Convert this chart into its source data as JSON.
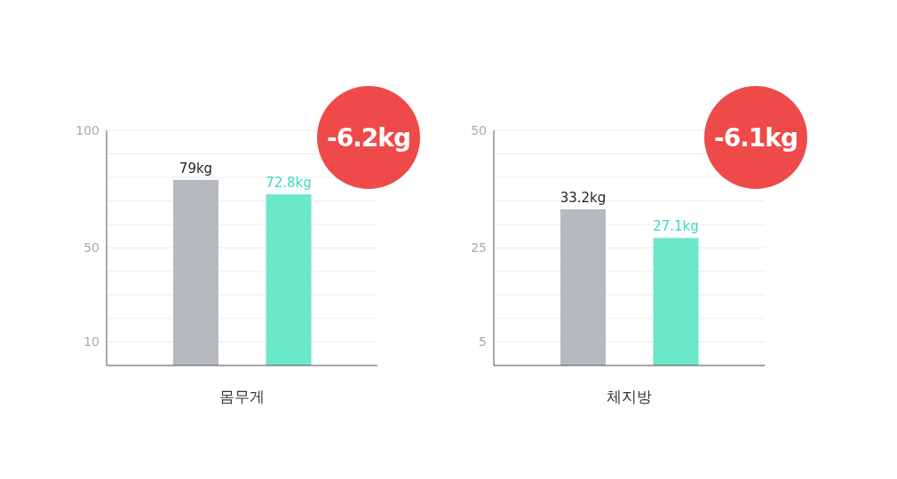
{
  "chart_data": [
    {
      "type": "bar",
      "xlabel": "몸무게",
      "categories": [
        null,
        null
      ],
      "values": [
        79,
        72.8
      ],
      "colors": [
        "#b6b9bd",
        "#6be7ca"
      ],
      "value_labels": [
        "79kg",
        "72.8kg"
      ],
      "ylim": [
        0,
        100
      ],
      "yticks": [
        {
          "value": 10,
          "label": "10"
        },
        {
          "value": 20,
          "label": null
        },
        {
          "value": 30,
          "label": null
        },
        {
          "value": 40,
          "label": null
        },
        {
          "value": 50,
          "label": "50"
        },
        {
          "value": 60,
          "label": null
        },
        {
          "value": 70,
          "label": null
        },
        {
          "value": 80,
          "label": null
        },
        {
          "value": 90,
          "label": null
        },
        {
          "value": 100,
          "label": "100"
        }
      ],
      "grid": "y",
      "annotations": [
        "-6.2kg"
      ]
    },
    {
      "type": "bar",
      "xlabel": "체지방",
      "categories": [
        null,
        null
      ],
      "values": [
        33.2,
        27.1
      ],
      "colors": [
        "#b6b9bd",
        "#6be7ca"
      ],
      "value_labels": [
        "33.2kg",
        "27.1kg"
      ],
      "ylim": [
        0,
        50
      ],
      "yticks": [
        {
          "value": 5,
          "label": "5"
        },
        {
          "value": 10,
          "label": null
        },
        {
          "value": 15,
          "label": null
        },
        {
          "value": 20,
          "label": null
        },
        {
          "value": 25,
          "label": "25"
        },
        {
          "value": 30,
          "label": null
        },
        {
          "value": 35,
          "label": null
        },
        {
          "value": 40,
          "label": null
        },
        {
          "value": 45,
          "label": null
        },
        {
          "value": 50,
          "label": "50"
        }
      ],
      "grid": "y",
      "annotations": [
        "-6.1kg"
      ]
    }
  ]
}
